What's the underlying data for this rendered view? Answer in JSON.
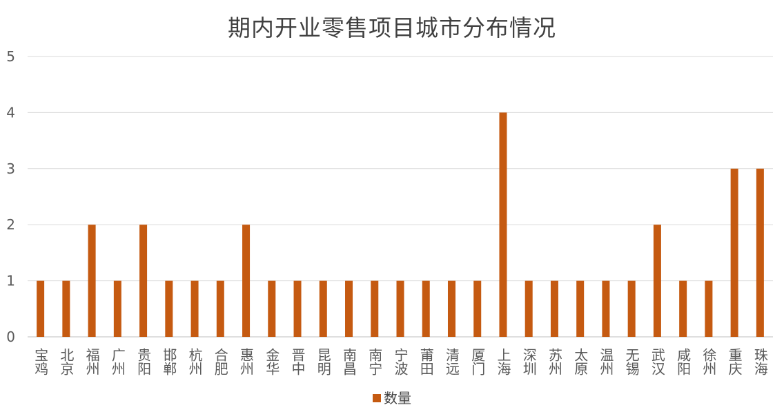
{
  "chart_data": {
    "type": "bar",
    "title": "期内开业零售项目城市分布情况",
    "categories": [
      "宝鸡",
      "北京",
      "福州",
      "广州",
      "贵阳",
      "邯郸",
      "杭州",
      "合肥",
      "惠州",
      "金华",
      "晋中",
      "昆明",
      "南昌",
      "南宁",
      "宁波",
      "莆田",
      "清远",
      "厦门",
      "上海",
      "深圳",
      "苏州",
      "太原",
      "温州",
      "无锡",
      "武汉",
      "咸阳",
      "徐州",
      "重庆",
      "珠海"
    ],
    "series": [
      {
        "name": "数量",
        "values": [
          1,
          1,
          2,
          1,
          2,
          1,
          1,
          1,
          2,
          1,
          1,
          1,
          1,
          1,
          1,
          1,
          1,
          1,
          4,
          1,
          1,
          1,
          1,
          1,
          2,
          1,
          1,
          3,
          3
        ]
      }
    ],
    "yticks": [
      0,
      1,
      2,
      3,
      4,
      5
    ],
    "ylim": [
      0,
      5
    ],
    "grid": true,
    "legend_position": "bottom",
    "colors": {
      "bar": "#C55A11",
      "grid": "#D9D9D9",
      "axis": "#BFBFBF",
      "text": "#595959"
    }
  }
}
